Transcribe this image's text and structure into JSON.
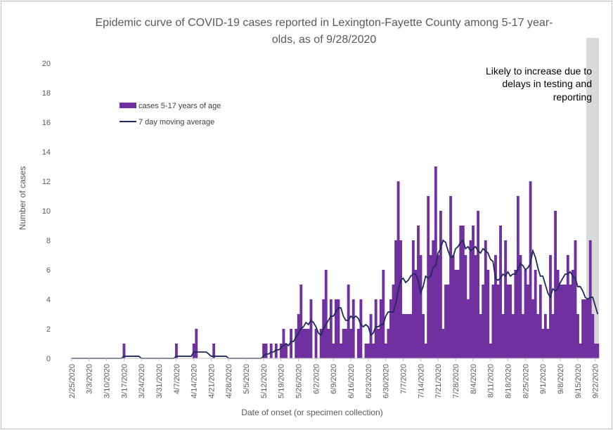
{
  "chart_data": {
    "type": "bar",
    "title_line1": "Epidemic curve of COVID-19 cases reported in Lexington-Fayette County among 5-17 year-",
    "title_line2": "olds, as of 9/28/2020",
    "xlabel": "Date of onset (or specimen collection)",
    "ylabel": "Number of cases",
    "ylim": [
      0,
      20
    ],
    "yticks": [
      0,
      2,
      4,
      6,
      8,
      10,
      12,
      14,
      16,
      18,
      20
    ],
    "start_date": "2/25/2020",
    "xtick_labels": [
      "2/25/2020",
      "3/3/2020",
      "3/10/2020",
      "3/17/2020",
      "3/24/2020",
      "3/31/2020",
      "4/7/2020",
      "4/14/2020",
      "4/21/2020",
      "4/28/2020",
      "5/5/2020",
      "5/12/2020",
      "5/19/2020",
      "5/26/2020",
      "6/2/2020",
      "6/9/2020",
      "6/16/2020",
      "6/23/2020",
      "6/30/2020",
      "7/7/2020",
      "7/14/2020",
      "7/21/2020",
      "7/28/2020",
      "8/4/2020",
      "8/11/2020",
      "8/18/2020",
      "8/25/2020",
      "9/1/2020",
      "9/8/2020",
      "9/15/2020",
      "9/22/2020"
    ],
    "legend": {
      "position": "top-left",
      "bar_label": "cases 5-17 years of age",
      "line_label": "7 day moving average"
    },
    "colors": {
      "bar": "#7030A0",
      "line": "#1F2A5C",
      "shade": "#D9D9D9"
    },
    "annotation": {
      "line1": "Likely to increase due to",
      "line2": "delays in testing and",
      "line3": "reporting"
    },
    "grid": false,
    "series": [
      {
        "name": "cases 5-17 years of age",
        "values": [
          0,
          0,
          0,
          0,
          0,
          0,
          0,
          0,
          0,
          0,
          0,
          0,
          0,
          0,
          0,
          0,
          0,
          0,
          0,
          0,
          0,
          1,
          0,
          0,
          0,
          0,
          0,
          0,
          0,
          0,
          0,
          0,
          0,
          0,
          0,
          0,
          0,
          0,
          0,
          0,
          0,
          0,
          1,
          0,
          0,
          0,
          0,
          0,
          0,
          1,
          2,
          0,
          0,
          0,
          0,
          0,
          0,
          1,
          0,
          0,
          0,
          0,
          0,
          0,
          0,
          0,
          0,
          0,
          0,
          0,
          0,
          0,
          0,
          0,
          0,
          0,
          0,
          1,
          1,
          0,
          1,
          0,
          1,
          0,
          1,
          2,
          1,
          0,
          2,
          0,
          2,
          3,
          5,
          2,
          2,
          2,
          4,
          0,
          2,
          0,
          2,
          4,
          6,
          2,
          4,
          1,
          4,
          4,
          1,
          2,
          2,
          5,
          2,
          4,
          0,
          2,
          4,
          0,
          1,
          1,
          3,
          1,
          4,
          2,
          4,
          6,
          1,
          2,
          4,
          5,
          8,
          12,
          8,
          3,
          3,
          3,
          3,
          8,
          6,
          9,
          7,
          3,
          1,
          11,
          7,
          8,
          13,
          7,
          10,
          2,
          5,
          5,
          11,
          7,
          6,
          6,
          9,
          9,
          7,
          4,
          8,
          9,
          7,
          10,
          3,
          5,
          8,
          6,
          1,
          5,
          7,
          5,
          9,
          3,
          8,
          5,
          5,
          3,
          6,
          11,
          7,
          3,
          6,
          5,
          12,
          4,
          6,
          3,
          5,
          2,
          3,
          2,
          7,
          3,
          10,
          6,
          5,
          5,
          5,
          7,
          5,
          6,
          8,
          3,
          1,
          4,
          4,
          4,
          8,
          3,
          1,
          1
        ],
        "missing_note": "one value per day starting at start_date"
      },
      {
        "name": "7 day moving average",
        "values": [
          0,
          0,
          0,
          0,
          0,
          0,
          0,
          0,
          0,
          0,
          0,
          0,
          0,
          0,
          0,
          0,
          0,
          0,
          0,
          0,
          0,
          0.14,
          0.14,
          0.14,
          0.14,
          0.14,
          0.14,
          0.14,
          0,
          0,
          0,
          0,
          0,
          0,
          0,
          0,
          0,
          0,
          0,
          0,
          0,
          0,
          0.14,
          0.14,
          0.14,
          0.14,
          0.14,
          0.14,
          0.14,
          0.43,
          0.43,
          0.43,
          0.43,
          0.43,
          0.43,
          0.29,
          0.14,
          0.14,
          0.14,
          0.14,
          0.14,
          0.14,
          0.14,
          0,
          0,
          0,
          0,
          0,
          0,
          0,
          0,
          0,
          0,
          0,
          0,
          0,
          0,
          0.14,
          0.29,
          0.29,
          0.43,
          0.43,
          0.57,
          0.57,
          0.71,
          0.86,
          1.0,
          0.86,
          1.14,
          1.14,
          1.43,
          1.71,
          2.0,
          2.14,
          2.43,
          2.29,
          2.57,
          2.43,
          2.14,
          1.71,
          1.57,
          2.0,
          2.29,
          2.57,
          2.86,
          2.86,
          3.14,
          3.43,
          3.43,
          2.86,
          2.57,
          2.57,
          2.86,
          2.71,
          2.86,
          2.71,
          2.29,
          2.14,
          2.29,
          2.14,
          1.57,
          1.71,
          2.14,
          2.14,
          2.29,
          2.29,
          2.86,
          3.14,
          3.14,
          3.14,
          3.71,
          4.57,
          5.29,
          5.43,
          5.14,
          5.29,
          5.57,
          5.71,
          5.71,
          5.29,
          4.43,
          4.86,
          5.57,
          5.43,
          5.57,
          6.14,
          6.29,
          7.14,
          7.43,
          8.0,
          7.86,
          7.29,
          6.86,
          6.86,
          7.43,
          7.57,
          7.86,
          8.0,
          7.43,
          7.57,
          7.29,
          7.43,
          7.57,
          7.29,
          7.14,
          7.43,
          7.29,
          7.14,
          6.71,
          6.57,
          5.43,
          5.29,
          5.43,
          5.71,
          5.57,
          5.86,
          5.57,
          5.71,
          5.71,
          6.0,
          6.43,
          6.29,
          6.0,
          6.14,
          6.43,
          7.29,
          6.86,
          6.14,
          5.57,
          5.57,
          5.0,
          4.43,
          4.14,
          4.71,
          4.57,
          4.71,
          5.14,
          5.43,
          5.71,
          5.71,
          5.86,
          5.57,
          5.43,
          4.86,
          4.86,
          4.57,
          4.14,
          4.0,
          4.14,
          4.14,
          3.57,
          3.0
        ]
      }
    ]
  }
}
